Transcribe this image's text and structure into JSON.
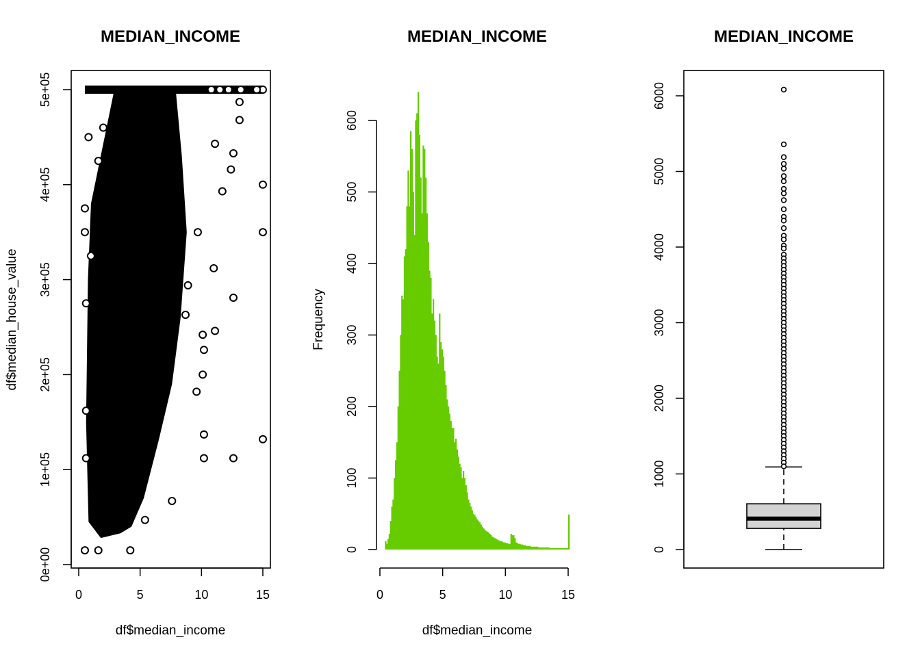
{
  "chart_data": [
    {
      "type": "scatter",
      "title": "MEDIAN_INCOME",
      "xlabel": "df$median_income",
      "ylabel": "df$median_house_value",
      "xlim": [
        0,
        15
      ],
      "ylim": [
        0,
        500000
      ],
      "xticks": [
        0,
        5,
        10,
        15
      ],
      "xtick_labels": [
        "0",
        "5",
        "10",
        "15"
      ],
      "yticks": [
        0,
        100000,
        200000,
        300000,
        400000,
        500000
      ],
      "ytick_labels": [
        "0e+00",
        "1e+05",
        "2e+05",
        "3e+05",
        "4e+05",
        "5e+05"
      ],
      "points": [
        [
          15.0,
          500001
        ],
        [
          14.5,
          500001
        ],
        [
          13.2,
          500001
        ],
        [
          12.2,
          500001
        ],
        [
          11.5,
          500001
        ],
        [
          10.8,
          500001
        ],
        [
          13.1,
          487000
        ],
        [
          13.1,
          468000
        ],
        [
          12.6,
          433000
        ],
        [
          12.4,
          416000
        ],
        [
          11.1,
          443000
        ],
        [
          11.7,
          393000
        ],
        [
          15.0,
          400000
        ],
        [
          15.0,
          350000
        ],
        [
          11.0,
          312000
        ],
        [
          12.6,
          281000
        ],
        [
          11.1,
          246000
        ],
        [
          10.2,
          226000
        ],
        [
          10.1,
          242000
        ],
        [
          10.1,
          200000
        ],
        [
          9.6,
          182000
        ],
        [
          10.2,
          137000
        ],
        [
          10.2,
          112000
        ],
        [
          12.6,
          112000
        ],
        [
          15.0,
          132000
        ],
        [
          7.6,
          67000
        ],
        [
          5.4,
          47000
        ],
        [
          4.2,
          15000
        ],
        [
          0.5,
          15000
        ],
        [
          1.6,
          15000
        ],
        [
          0.5,
          350000
        ],
        [
          0.6,
          275000
        ],
        [
          0.6,
          162000
        ],
        [
          0.6,
          112000
        ],
        [
          0.5,
          375000
        ],
        [
          0.8,
          450000
        ],
        [
          1.0,
          325000
        ],
        [
          1.6,
          425000
        ],
        [
          2.0,
          460000
        ],
        [
          8.9,
          294000
        ],
        [
          9.7,
          350000
        ],
        [
          8.7,
          263000
        ]
      ]
    },
    {
      "type": "bar",
      "title": "MEDIAN_INCOME",
      "xlabel": "df$median_income",
      "ylabel": "Frequency",
      "color": "#66cc00",
      "xlim": [
        0,
        15
      ],
      "ylim": [
        0,
        640
      ],
      "xticks": [
        0,
        5,
        10,
        15
      ],
      "xtick_labels": [
        "0",
        "5",
        "10",
        "15"
      ],
      "yticks": [
        0,
        100,
        200,
        300,
        400,
        500,
        600
      ],
      "ytick_labels": [
        "0",
        "100",
        "200",
        "300",
        "400",
        "500",
        "600"
      ],
      "bin_start": 0.4,
      "bin_width": 0.1,
      "values": [
        12,
        8,
        15,
        22,
        40,
        60,
        70,
        100,
        125,
        150,
        200,
        250,
        300,
        355,
        350,
        410,
        420,
        480,
        530,
        480,
        585,
        560,
        500,
        440,
        600,
        610,
        640,
        580,
        520,
        470,
        565,
        560,
        520,
        470,
        430,
        390,
        380,
        330,
        350,
        320,
        300,
        270,
        260,
        330,
        290,
        280,
        270,
        250,
        230,
        210,
        200,
        190,
        180,
        170,
        170,
        150,
        155,
        140,
        130,
        120,
        115,
        100,
        110,
        100,
        90,
        80,
        70,
        65,
        60,
        55,
        50,
        48,
        45,
        42,
        40,
        38,
        35,
        32,
        30,
        28,
        26,
        25,
        24,
        22,
        20,
        18,
        17,
        16,
        15,
        14,
        13,
        12,
        12,
        11,
        10,
        10,
        9,
        9,
        8,
        8,
        22,
        20,
        20,
        16,
        10,
        9,
        8,
        8,
        7,
        7,
        6,
        6,
        5,
        5,
        5,
        5,
        4,
        4,
        4,
        4,
        4,
        4,
        3,
        3,
        3,
        3,
        3,
        3,
        3,
        3,
        3,
        2,
        2,
        2,
        2,
        2,
        2,
        2,
        2,
        2,
        2,
        2,
        2,
        2,
        2,
        2,
        49
      ]
    },
    {
      "type": "box",
      "title": "MEDIAN_INCOME",
      "ylim": [
        0,
        6000
      ],
      "yticks": [
        0,
        1000,
        2000,
        3000,
        4000,
        5000,
        6000
      ],
      "ytick_labels": [
        "0",
        "1000",
        "2000",
        "3000",
        "4000",
        "5000",
        "6000"
      ],
      "box_color": "#d3d3d3",
      "whisker_low": 0,
      "q1": 280,
      "median": 410,
      "q3": 605,
      "whisker_high": 1092,
      "outliers": [
        6082,
        5358,
        5189,
        5100,
        5037,
        4938,
        4870,
        4770,
        4710,
        4620,
        4500,
        4400,
        4350,
        4250,
        4150,
        4100,
        4020,
        3980,
        3900,
        3850,
        3800,
        3750,
        3700,
        3650,
        3600,
        3550,
        3500,
        3450,
        3400,
        3350,
        3300,
        3250,
        3200,
        3150,
        3100,
        3050,
        3000,
        2950,
        2900,
        2850,
        2800,
        2750,
        2700,
        2650,
        2600,
        2550,
        2500,
        2450,
        2400,
        2350,
        2300,
        2250,
        2200,
        2150,
        2100,
        2050,
        2000,
        1950,
        1900,
        1850,
        1800,
        1750,
        1700,
        1650,
        1600,
        1550,
        1500,
        1450,
        1400,
        1350,
        1300,
        1250,
        1200,
        1150,
        1100
      ]
    }
  ]
}
